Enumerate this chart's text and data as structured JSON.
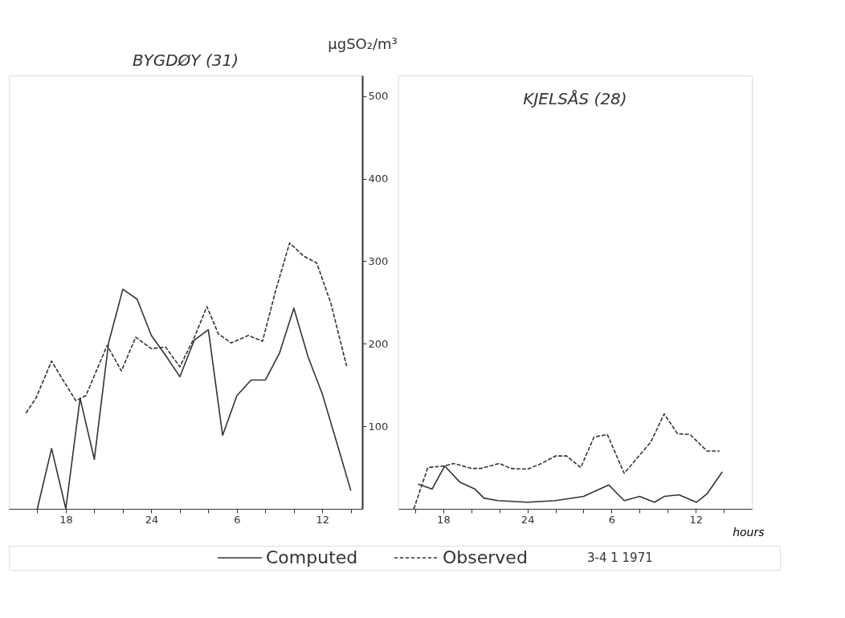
{
  "chart_data": [
    {
      "type": "line",
      "title": "BYGDØY (31)",
      "ylabel": "µgSO₂/m³",
      "legend": "bottom",
      "grid": false,
      "marker": "none",
      "tick_labels": "xy",
      "annotations": [
        "3-4 1 1971"
      ],
      "xlim": [
        "1971-01-03T14:00",
        "1971-01-04T14:48"
      ],
      "ylim": [
        0,
        525
      ],
      "xticks": [
        {
          "value": "1971-01-03T16:00",
          "label": null
        },
        {
          "value": "1971-01-03T18:00",
          "label": "18"
        },
        {
          "value": "1971-01-03T20:00",
          "label": null
        },
        {
          "value": "1971-01-03T22:00",
          "label": null
        },
        {
          "value": "1971-01-04T00:00",
          "label": "24"
        },
        {
          "value": "1971-01-04T02:00",
          "label": null
        },
        {
          "value": "1971-01-04T04:00",
          "label": null
        },
        {
          "value": "1971-01-04T06:00",
          "label": "6"
        },
        {
          "value": "1971-01-04T08:00",
          "label": null
        },
        {
          "value": "1971-01-04T10:00",
          "label": null
        },
        {
          "value": "1971-01-04T12:00",
          "label": "12"
        },
        {
          "value": "1971-01-04T14:00",
          "label": null
        }
      ],
      "yticks": [
        100,
        200,
        300,
        400,
        500
      ],
      "series": [
        {
          "name": "Computed",
          "color": "#333333",
          "line_style": "solid",
          "x": [
            "1971-01-03T16:00",
            "1971-01-03T17:00",
            "1971-01-03T18:00",
            "1971-01-03T19:00",
            "1971-01-03T20:00",
            "1971-01-03T21:00",
            "1971-01-03T22:00",
            "1971-01-03T23:00",
            "1971-01-04T00:00",
            "1971-01-04T01:00",
            "1971-01-04T02:00",
            "1971-01-04T03:00",
            "1971-01-04T04:00",
            "1971-01-04T05:00",
            "1971-01-04T06:00",
            "1971-01-04T07:00",
            "1971-01-04T08:00",
            "1971-01-04T09:00",
            "1971-01-04T10:00",
            "1971-01-04T11:00",
            "1971-01-04T12:00",
            "1971-01-04T13:00",
            "1971-01-04T14:00"
          ],
          "values": [
            0,
            73,
            0,
            134,
            60,
            201,
            266,
            254,
            210,
            186,
            160,
            204,
            217,
            89,
            137,
            156,
            156,
            189,
            243,
            184,
            139,
            81,
            22
          ]
        },
        {
          "name": "Observed",
          "color": "#333333",
          "line_style": "dashed",
          "x": [
            "1971-01-03T15:12",
            "1971-01-03T15:54",
            "1971-01-03T17:00",
            "1971-01-03T17:48",
            "1971-01-03T18:42",
            "1971-01-03T19:24",
            "1971-01-03T20:54",
            "1971-01-03T21:54",
            "1971-01-03T22:54",
            "1971-01-04T00:00",
            "1971-01-04T01:00",
            "1971-01-04T02:00",
            "1971-01-04T03:00",
            "1971-01-04T03:54",
            "1971-01-04T04:42",
            "1971-01-04T05:36",
            "1971-01-04T06:48",
            "1971-01-04T07:48",
            "1971-01-04T08:42",
            "1971-01-04T09:42",
            "1971-01-04T10:42",
            "1971-01-04T11:36",
            "1971-01-04T12:36",
            "1971-01-04T13:42"
          ],
          "values": [
            116,
            134,
            179,
            156,
            131,
            137,
            198,
            167,
            208,
            194,
            196,
            172,
            207,
            245,
            212,
            201,
            210,
            203,
            263,
            322,
            306,
            298,
            249,
            173
          ]
        }
      ]
    },
    {
      "type": "line",
      "title": "KJELSÅS (28)",
      "xlabel": "hours",
      "grid": false,
      "marker": "none",
      "tick_labels": "x",
      "xlim": [
        "1971-01-03T14:48",
        "1971-01-04T16:00"
      ],
      "ylim": [
        0,
        525
      ],
      "xticks": [
        {
          "value": "1971-01-03T16:00",
          "label": null
        },
        {
          "value": "1971-01-03T18:00",
          "label": "18"
        },
        {
          "value": "1971-01-03T20:00",
          "label": null
        },
        {
          "value": "1971-01-03T22:00",
          "label": null
        },
        {
          "value": "1971-01-04T00:00",
          "label": "24"
        },
        {
          "value": "1971-01-04T02:00",
          "label": null
        },
        {
          "value": "1971-01-04T04:00",
          "label": null
        },
        {
          "value": "1971-01-04T06:00",
          "label": "6"
        },
        {
          "value": "1971-01-04T08:00",
          "label": null
        },
        {
          "value": "1971-01-04T10:00",
          "label": null
        },
        {
          "value": "1971-01-04T12:00",
          "label": "12"
        },
        {
          "value": "1971-01-04T14:00",
          "label": null
        }
      ],
      "yticks": [
        100,
        200,
        300,
        400,
        500
      ],
      "series": [
        {
          "color": "#333333",
          "line_style": "solid",
          "x": [
            "1971-01-03T16:12",
            "1971-01-03T17:12",
            "1971-01-03T18:06",
            "1971-01-03T19:12",
            "1971-01-03T20:15",
            "1971-01-03T20:54",
            "1971-01-03T21:54",
            "1971-01-04T00:00",
            "1971-01-04T02:00",
            "1971-01-04T04:00",
            "1971-01-04T05:48",
            "1971-01-04T06:54",
            "1971-01-04T08:00",
            "1971-01-04T09:03",
            "1971-01-04T09:45",
            "1971-01-04T10:48",
            "1971-01-04T12:03",
            "1971-01-04T12:48",
            "1971-01-04T13:54"
          ],
          "values": [
            30,
            24,
            52,
            32,
            24,
            13,
            10,
            8,
            10,
            15,
            29,
            10,
            15,
            8,
            15,
            17,
            8,
            18,
            45
          ]
        },
        {
          "color": "#333333",
          "line_style": "dashed",
          "x": [
            "1971-01-03T15:54",
            "1971-01-03T16:54",
            "1971-01-03T18:06",
            "1971-01-03T18:45",
            "1971-01-03T20:00",
            "1971-01-03T20:42",
            "1971-01-03T22:00",
            "1971-01-03T22:48",
            "1971-01-04T00:00",
            "1971-01-04T01:00",
            "1971-01-04T02:00",
            "1971-01-04T02:48",
            "1971-01-04T03:48",
            "1971-01-04T04:45",
            "1971-01-04T05:42",
            "1971-01-04T06:54",
            "1971-01-04T08:48",
            "1971-01-04T09:45",
            "1971-01-04T10:42",
            "1971-01-04T11:36",
            "1971-01-04T12:48",
            "1971-01-04T13:42"
          ],
          "values": [
            0,
            50,
            52,
            55,
            49,
            49,
            55,
            49,
            48,
            55,
            64,
            64,
            50,
            87,
            90,
            43,
            81,
            115,
            91,
            90,
            70,
            70
          ]
        }
      ]
    }
  ]
}
